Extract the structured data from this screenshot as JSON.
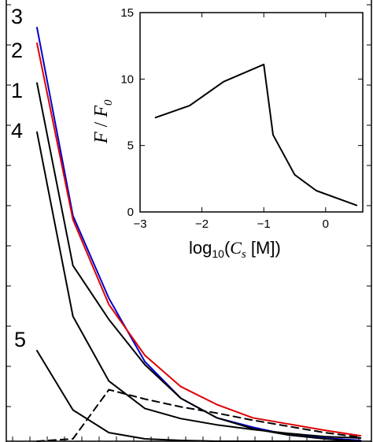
{
  "chart_data": [
    {
      "type": "line",
      "role": "main",
      "labels": [
        "3",
        "2",
        "1",
        "4",
        "5"
      ],
      "series": [
        {
          "label": "3",
          "color": "#0000cc",
          "dash": false,
          "x": [
            1,
            2,
            3,
            4,
            5,
            6,
            7,
            8,
            9,
            10
          ],
          "y": [
            530,
            289,
            183,
            102,
            55,
            30,
            18,
            8,
            4,
            1
          ]
        },
        {
          "label": "2",
          "color": "#dd0000",
          "dash": false,
          "x": [
            1,
            2,
            3,
            4,
            5,
            6,
            7,
            8,
            9,
            10
          ],
          "y": [
            510,
            284,
            175,
            110,
            70,
            47,
            30,
            22,
            14,
            7
          ]
        },
        {
          "label": "1",
          "color": "#000000",
          "dash": false,
          "x": [
            1,
            2,
            3,
            4,
            5,
            6,
            7,
            8,
            9,
            10
          ],
          "y": [
            459,
            225,
            156,
            98,
            55,
            30,
            16,
            8,
            3,
            0
          ]
        },
        {
          "label": "4",
          "color": "#000000",
          "dash": false,
          "x": [
            1,
            2,
            3,
            4,
            5,
            6,
            7,
            8,
            9,
            10
          ],
          "y": [
            396,
            160,
            77,
            42,
            29,
            21,
            15,
            10,
            6,
            4
          ]
        },
        {
          "label": "5",
          "color": "#000000",
          "dash": false,
          "x": [
            1,
            2,
            3,
            4,
            5,
            6,
            7,
            8,
            9,
            10
          ],
          "y": [
            116,
            40,
            11,
            3,
            1,
            0,
            0,
            0,
            0,
            0
          ]
        },
        {
          "label": "",
          "color": "#000000",
          "dash": true,
          "x": [
            1,
            2,
            3,
            4,
            5,
            6,
            7,
            8,
            9,
            10
          ],
          "y": [
            0,
            3,
            66,
            54,
            44,
            36,
            27,
            19,
            11,
            5
          ]
        }
      ],
      "xlim": [
        0.5,
        10.5
      ],
      "ylim": [
        0,
        535
      ]
    },
    {
      "type": "line",
      "role": "inset",
      "x": [
        -2.75,
        -2.2,
        -1.65,
        -1.0,
        -0.85,
        -0.5,
        -0.15,
        0.5
      ],
      "y": [
        7.1,
        8.0,
        9.8,
        11.1,
        5.8,
        2.8,
        1.6,
        0.5
      ],
      "xlim": [
        -3,
        0.6
      ],
      "ylim": [
        0,
        15
      ],
      "xticks": [
        "−3",
        "−2",
        "−1",
        "0"
      ],
      "yticks": [
        "0",
        "5",
        "10",
        "15"
      ],
      "xlabel": {
        "prefix": "log",
        "sub": "10",
        "open": "(",
        "var": "C",
        "varsub": "s",
        "unit": " [M])"
      },
      "ylabel": {
        "num": "F",
        "slash": " / ",
        "den": "F",
        "densub": "0"
      }
    }
  ]
}
